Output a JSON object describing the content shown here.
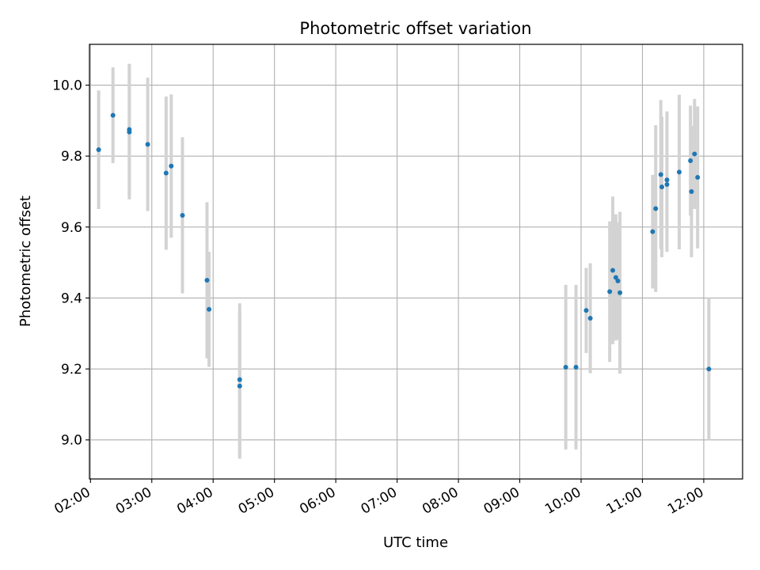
{
  "chart_data": {
    "type": "scatter",
    "title": "Photometric offset variation",
    "xlabel": "UTC time",
    "ylabel": "Photometric offset",
    "x_ticks": [
      "02:00",
      "03:00",
      "04:00",
      "05:00",
      "06:00",
      "07:00",
      "08:00",
      "09:00",
      "10:00",
      "11:00",
      "12:00"
    ],
    "y_ticks": [
      "9.0",
      "9.2",
      "9.4",
      "9.6",
      "9.8",
      "10.0"
    ],
    "xlim": [
      "01:59",
      "12:38"
    ],
    "ylim": [
      8.89,
      10.115
    ],
    "grid": true,
    "colors": {
      "points": "#1f77b4",
      "errorbars": "#d3d3d3",
      "grid": "#b0b0b0"
    },
    "points": [
      {
        "t": "02:08",
        "y": 9.818,
        "err": 0.167
      },
      {
        "t": "02:22",
        "y": 9.915,
        "err": 0.135
      },
      {
        "t": "02:38",
        "y": 9.875,
        "err": 0.185
      },
      {
        "t": "02:38",
        "y": 9.868,
        "err": 0.19
      },
      {
        "t": "02:56",
        "y": 9.833,
        "err": 0.188
      },
      {
        "t": "03:14",
        "y": 9.752,
        "err": 0.216
      },
      {
        "t": "03:19",
        "y": 9.772,
        "err": 0.202
      },
      {
        "t": "03:30",
        "y": 9.633,
        "err": 0.22
      },
      {
        "t": "03:54",
        "y": 9.45,
        "err": 0.22
      },
      {
        "t": "03:56",
        "y": 9.368,
        "err": 0.162
      },
      {
        "t": "04:26",
        "y": 9.17,
        "err": 0.215
      },
      {
        "t": "04:26",
        "y": 9.152,
        "err": 0.205
      },
      {
        "t": "09:45",
        "y": 9.205,
        "err": 0.232
      },
      {
        "t": "09:55",
        "y": 9.205,
        "err": 0.232
      },
      {
        "t": "10:05",
        "y": 9.365,
        "err": 0.12
      },
      {
        "t": "10:09",
        "y": 9.343,
        "err": 0.155
      },
      {
        "t": "10:28",
        "y": 9.418,
        "err": 0.198
      },
      {
        "t": "10:31",
        "y": 9.478,
        "err": 0.208
      },
      {
        "t": "10:34",
        "y": 9.458,
        "err": 0.178
      },
      {
        "t": "10:36",
        "y": 9.448,
        "err": 0.165
      },
      {
        "t": "10:38",
        "y": 9.415,
        "err": 0.228
      },
      {
        "t": "11:10",
        "y": 9.587,
        "err": 0.16
      },
      {
        "t": "11:13",
        "y": 9.652,
        "err": 0.235
      },
      {
        "t": "11:18",
        "y": 9.748,
        "err": 0.21
      },
      {
        "t": "11:19",
        "y": 9.713,
        "err": 0.198
      },
      {
        "t": "11:24",
        "y": 9.733,
        "err": 0.193
      },
      {
        "t": "11:24",
        "y": 9.72,
        "err": 0.19
      },
      {
        "t": "11:36",
        "y": 9.755,
        "err": 0.218
      },
      {
        "t": "11:47",
        "y": 9.787,
        "err": 0.155
      },
      {
        "t": "11:48",
        "y": 9.7,
        "err": 0.185
      },
      {
        "t": "11:51",
        "y": 9.806,
        "err": 0.155
      },
      {
        "t": "11:54",
        "y": 9.74,
        "err": 0.2
      },
      {
        "t": "12:05",
        "y": 9.2,
        "err": 0.2
      }
    ]
  }
}
